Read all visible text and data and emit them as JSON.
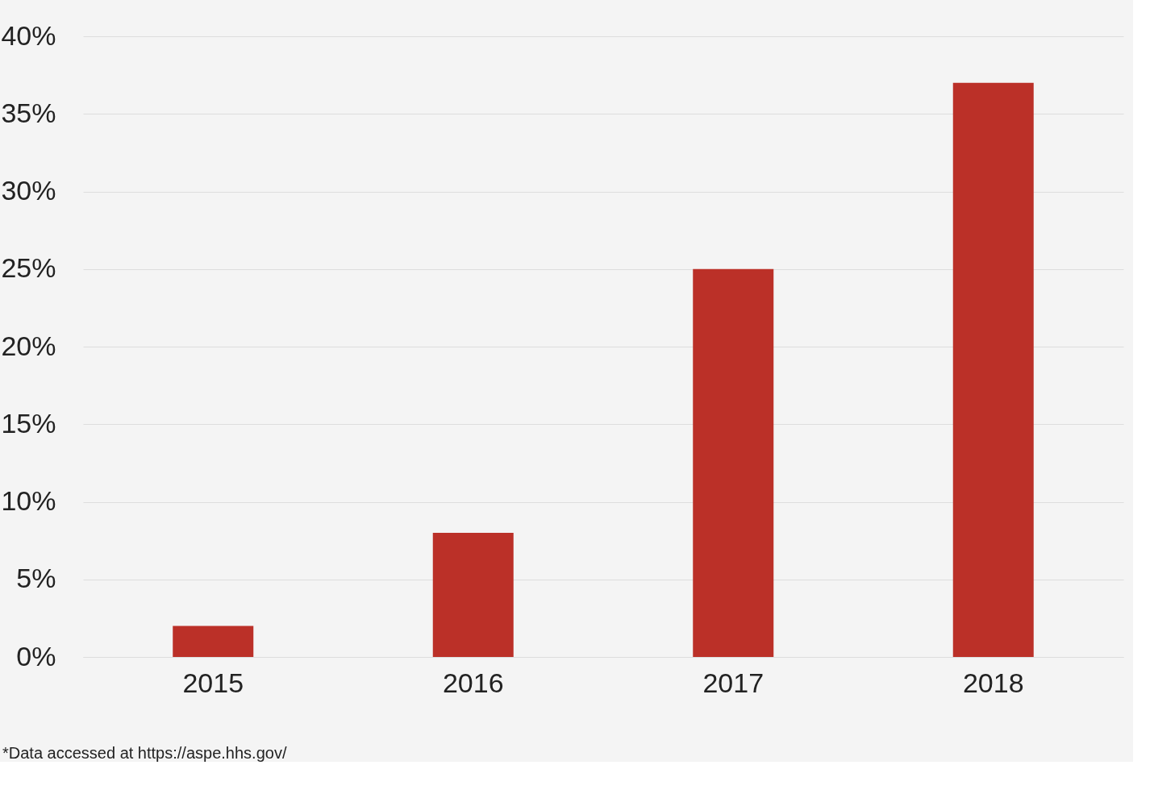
{
  "chart_data": {
    "type": "bar",
    "categories": [
      "2015",
      "2016",
      "2017",
      "2018"
    ],
    "values": [
      2,
      8,
      25,
      37
    ],
    "color": "#bb3028",
    "ylim": [
      0,
      40
    ],
    "yticks": [
      {
        "value": 0,
        "label": "0%"
      },
      {
        "value": 5,
        "label": "5%"
      },
      {
        "value": 10,
        "label": "10%"
      },
      {
        "value": 15,
        "label": "15%"
      },
      {
        "value": 20,
        "label": "20%"
      },
      {
        "value": 25,
        "label": "25%"
      },
      {
        "value": 30,
        "label": "30%"
      },
      {
        "value": 35,
        "label": "35%"
      },
      {
        "value": 40,
        "label": "40%"
      }
    ],
    "grid": "y",
    "annotations": [
      "*Data accessed at https://aspe.hhs.gov/"
    ]
  }
}
